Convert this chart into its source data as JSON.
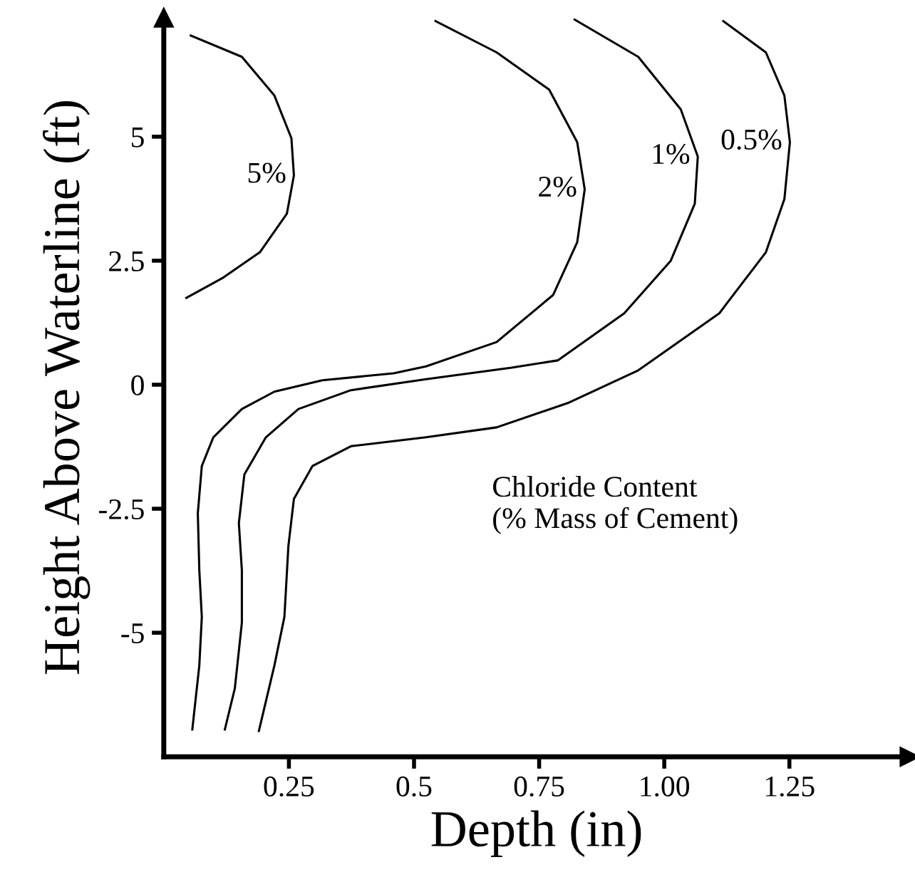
{
  "chart_data": {
    "type": "line",
    "xlabel": "Depth (in)",
    "ylabel": "Height Above Waterline (ft)",
    "xlim": [
      0,
      1.49
    ],
    "ylim": [
      -7.5,
      7.4
    ],
    "xticks": [
      0.25,
      0.5,
      0.75,
      {
        "value": 1.0,
        "label": "1.00"
      },
      1.25
    ],
    "yticks": [
      -5,
      -2.5,
      0,
      2.5,
      5
    ],
    "grid": false,
    "legend": false,
    "marker": "none",
    "line_style": "solid",
    "annotations": [
      "Chloride Content\n(% Mass of Cement)"
    ],
    "series": [
      {
        "name": "5%",
        "color": "#000000",
        "x": [
          0.054,
          0.156,
          0.221,
          0.255,
          0.26,
          0.246,
          0.192,
          0.119,
          0.045
        ],
        "values": [
          7.04,
          6.61,
          5.83,
          4.97,
          4.22,
          3.45,
          2.67,
          2.16,
          1.75
        ]
      },
      {
        "name": "2%",
        "color": "#000000",
        "x": [
          0.543,
          0.665,
          0.77,
          0.826,
          0.841,
          0.826,
          0.778,
          0.665,
          0.524,
          0.459,
          0.317,
          0.221,
          0.156,
          0.099,
          0.076,
          0.068,
          0.071,
          0.076,
          0.071,
          0.057
        ],
        "values": [
          7.33,
          6.7,
          5.95,
          4.89,
          3.94,
          2.87,
          1.81,
          0.86,
          0.37,
          0.23,
          0.09,
          -0.14,
          -0.49,
          -1.06,
          -1.64,
          -2.59,
          -3.74,
          -4.68,
          -5.66,
          -6.95
        ]
      },
      {
        "name": "1%",
        "color": "#000000",
        "x": [
          0.821,
          0.948,
          1.033,
          1.067,
          1.061,
          1.013,
          0.92,
          0.787,
          0.693,
          0.524,
          0.374,
          0.269,
          0.204,
          0.161,
          0.15,
          0.156,
          0.156,
          0.142,
          0.122
        ],
        "values": [
          7.36,
          6.61,
          5.55,
          4.6,
          3.65,
          2.5,
          1.44,
          0.49,
          0.34,
          0.11,
          -0.11,
          -0.49,
          -1.06,
          -1.81,
          -2.79,
          -3.74,
          -4.8,
          -6.12,
          -6.95
        ]
      },
      {
        "name": "0.5%",
        "color": "#000000",
        "x": [
          1.118,
          1.203,
          1.24,
          1.251,
          1.24,
          1.203,
          1.11,
          0.948,
          0.807,
          0.665,
          0.524,
          0.374,
          0.297,
          0.26,
          0.249,
          0.241,
          0.221,
          0.19
        ],
        "values": [
          7.33,
          6.7,
          5.83,
          4.89,
          3.74,
          2.67,
          1.44,
          0.29,
          -0.37,
          -0.86,
          -1.06,
          -1.24,
          -1.64,
          -2.3,
          -3.25,
          -4.68,
          -5.66,
          -6.98
        ]
      }
    ]
  }
}
